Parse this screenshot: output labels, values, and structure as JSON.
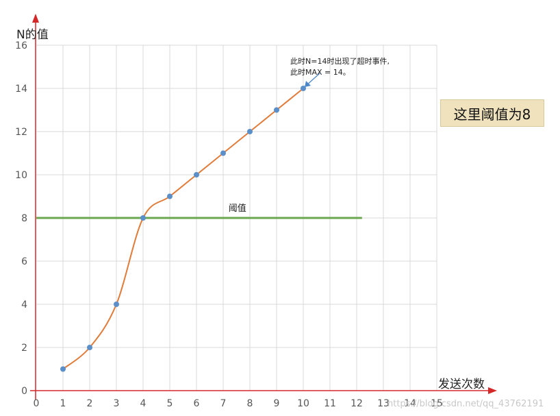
{
  "chart_data": {
    "type": "line",
    "ylabel": "N的值",
    "xlabel": "发送次数",
    "xlim": [
      0,
      15
    ],
    "ylim": [
      0,
      16
    ],
    "x_ticks": [
      0,
      1,
      2,
      3,
      4,
      5,
      6,
      7,
      8,
      9,
      10,
      11,
      12,
      13,
      14,
      15
    ],
    "y_ticks": [
      0,
      2,
      4,
      6,
      8,
      10,
      12,
      14,
      16
    ],
    "grid": true,
    "series": [
      {
        "x": [
          1,
          2,
          3,
          4,
          5,
          6,
          7,
          8,
          9,
          10
        ],
        "values": [
          1,
          2,
          4,
          8,
          9,
          10,
          11,
          12,
          13,
          14
        ],
        "line_color": "#e07b39",
        "marker_color": "#5b8fc9"
      }
    ],
    "threshold": {
      "value": 8,
      "x_end": 12.2,
      "label": "阈值",
      "color": "#6aa84f"
    },
    "annotation": {
      "line1": "此时N=14时出现了超时事件,",
      "line2": "此时MAX = 14。",
      "target_x": 10,
      "target_y": 14
    }
  },
  "callout_text": "这里阈值为8",
  "watermark": "https://blog.csdn.net/qq_43762191",
  "colors": {
    "axis": "#d62728",
    "grid": "#d9d9d9"
  }
}
